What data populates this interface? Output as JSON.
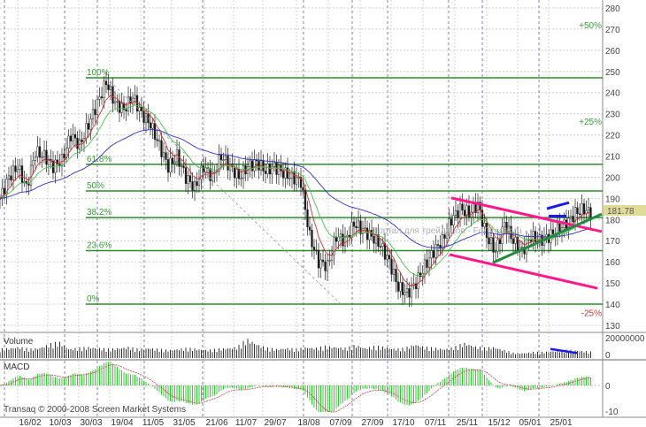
{
  "chart_data": {
    "type": "candlestick",
    "title": "",
    "price_axis": {
      "ticks": [
        280,
        270,
        260,
        250,
        240,
        230,
        220,
        210,
        200,
        190,
        180,
        170,
        160,
        150,
        140,
        130
      ],
      "ylim": [
        130,
        283
      ]
    },
    "x_ticks": [
      "16/02",
      "10/03",
      "30/03",
      "19/04",
      "11/05",
      "31/05",
      "21/06",
      "11/07",
      "29/07",
      "18/08",
      "07/09",
      "27/09",
      "17/10",
      "07/11",
      "25/11",
      "15/12",
      "05/01",
      "25/01"
    ],
    "close_approx": [
      190,
      200,
      205,
      195,
      212,
      210,
      205,
      208,
      220,
      215,
      225,
      235,
      245,
      235,
      232,
      238,
      230,
      225,
      215,
      205,
      210,
      200,
      195,
      205,
      200,
      210,
      205,
      200,
      205,
      207,
      203,
      205,
      202,
      200,
      198,
      172,
      160,
      158,
      172,
      170,
      178,
      175,
      172,
      168,
      160,
      148,
      145,
      150,
      158,
      165,
      170,
      180,
      185,
      183,
      187,
      172,
      165,
      178,
      170,
      165,
      172,
      170,
      172,
      175,
      178,
      183,
      185,
      182
    ],
    "last_price": "181.78",
    "fibonacci": {
      "levels": [
        {
          "label": "100%",
          "price": 247
        },
        {
          "label": "61.8%",
          "price": 206.1
        },
        {
          "label": "50%",
          "price": 193.5
        },
        {
          "label": "38.2%",
          "price": 180.9
        },
        {
          "label": "23.6%",
          "price": 165.3
        },
        {
          "label": "0%",
          "price": 140
        }
      ],
      "color": "#2e8b2e"
    },
    "percent_labels": [
      {
        "label": "+50%",
        "price": 272,
        "color": "#3c9a3c"
      },
      {
        "label": "+25%",
        "price": 226.5,
        "color": "#3c9a3c"
      },
      {
        "label": "-25%",
        "price": 136,
        "color": "#c04040"
      }
    ],
    "trendlines": [
      {
        "name": "channel-upper",
        "color": "#ff1a8c",
        "from": [
          51,
          190.2
        ],
        "to": [
          68,
          174.3
        ]
      },
      {
        "name": "channel-lower",
        "color": "#ff1a8c",
        "from": [
          50.8,
          163.4
        ],
        "to": [
          67.5,
          147.5
        ]
      },
      {
        "name": "support",
        "color": "#1e8c3c",
        "from": [
          55.7,
          159.6
        ],
        "to": [
          68,
          182.6
        ]
      },
      {
        "name": "top-divergence",
        "color": "#1a1aee",
        "from": [
          61.8,
          185.1
        ],
        "to": [
          64.3,
          188
        ]
      },
      {
        "name": "short-base",
        "color": "#1a1aee",
        "from": [
          62,
          181.6
        ],
        "to": [
          64,
          181.6
        ]
      },
      {
        "name": "dashed-decline",
        "color": "#9a9a9a",
        "from": [
          12,
          247
        ],
        "to": [
          38.5,
          140
        ]
      }
    ],
    "moving_average_colors": {
      "fast": "#d03030",
      "mid": "#50c050",
      "slow": "#3030c0"
    },
    "volume": {
      "label": "Volume",
      "ticks": [
        "20000000",
        "0"
      ],
      "max": 20000000,
      "values_millions": [
        9,
        10,
        11,
        9,
        10,
        14,
        16,
        9,
        10,
        11,
        10,
        9,
        10,
        11,
        9,
        10,
        9,
        8,
        9,
        10,
        9,
        8,
        9,
        10,
        11,
        19,
        14,
        10,
        9,
        10,
        9,
        11,
        10,
        12,
        11,
        10,
        13,
        10,
        12,
        11,
        9,
        10,
        14,
        11,
        10,
        9,
        11,
        15,
        12,
        10,
        11,
        8,
        5,
        5,
        6,
        6,
        7,
        8,
        8,
        7,
        6
      ],
      "divergence_line": {
        "color": "#1a1aee",
        "from_millions": 9,
        "to_millions": 5
      }
    },
    "macd": {
      "label": "MACD",
      "ticks": [
        "0",
        "-10"
      ],
      "ylim": [
        -10,
        10
      ],
      "histogram_color": "#33cc33",
      "signal_color": "#c04040"
    },
    "price_box_color": "#e0dc98"
  },
  "footer": {
    "copyright": "Transaq © 2000-2008 Screen Market Systems"
  },
  "watermark": "Портал для трейдеров - ForTrader.ru"
}
